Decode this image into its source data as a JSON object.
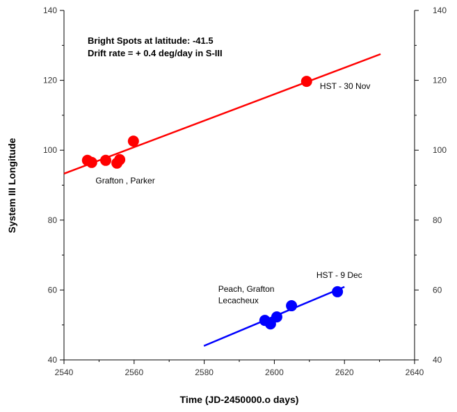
{
  "chart_data": {
    "type": "scatter",
    "title_lines": [
      "Bright Spots at latitude: -41.5",
      "Drift rate = + 0.4 deg/day in S-III"
    ],
    "xlabel": "Time (JD-2450000.o days)",
    "ylabel": "System III Longitude",
    "xlim": [
      2540,
      2640
    ],
    "ylim": [
      40,
      140
    ],
    "xticks": [
      2540,
      2560,
      2580,
      2600,
      2620,
      2640
    ],
    "yticks": [
      40,
      60,
      80,
      100,
      120,
      140
    ],
    "grid": false,
    "series": [
      {
        "color": "#ff0000",
        "points": [
          [
            2546.7,
            97.1
          ],
          [
            2547.9,
            96.5
          ],
          [
            2551.9,
            97.1
          ],
          [
            2555.1,
            96.3
          ],
          [
            2555.9,
            97.3
          ],
          [
            2559.8,
            102.6
          ],
          [
            2609.2,
            119.7
          ]
        ],
        "fit_line": [
          [
            2540,
            93.3
          ],
          [
            2630.3,
            127.5
          ]
        ]
      },
      {
        "color": "#0000ff",
        "points": [
          [
            2597.3,
            51.3
          ],
          [
            2598.9,
            50.3
          ],
          [
            2600.7,
            52.3
          ],
          [
            2604.9,
            55.5
          ],
          [
            2618,
            59.5
          ]
        ],
        "fit_line": [
          [
            2579.9,
            44.0
          ],
          [
            2620,
            60.9
          ]
        ]
      }
    ],
    "annotations": [
      {
        "text": "HST - 30 Nov",
        "x": 2613,
        "y": 117.5
      },
      {
        "text": "Grafton , Parker",
        "x": 2549,
        "y": 90.5
      },
      {
        "text": "HST - 9 Dec",
        "x": 2612,
        "y": 63.5
      },
      {
        "text": "Peach, Grafton",
        "x": 2584,
        "y": 59.5
      },
      {
        "text": "Lecacheux",
        "x": 2584,
        "y": 56.2
      }
    ]
  }
}
